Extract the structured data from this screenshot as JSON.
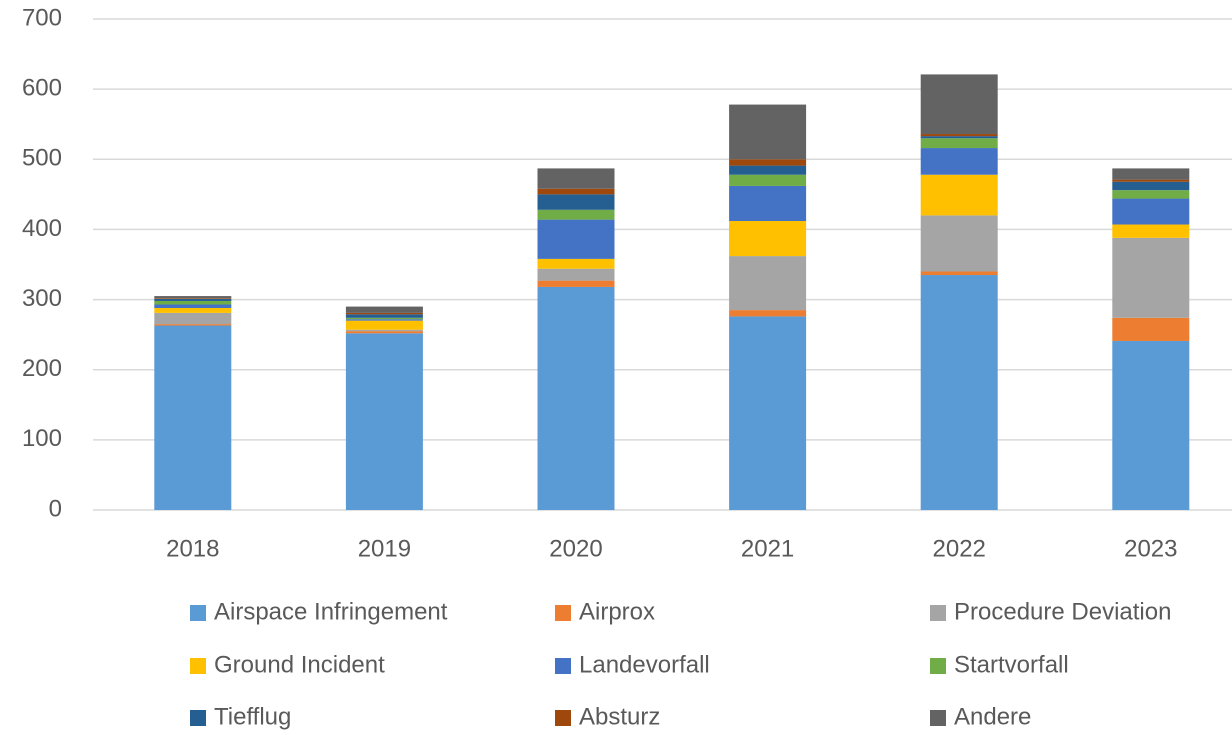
{
  "chart_data": {
    "type": "stacked_bar",
    "categories": [
      "2018",
      "2019",
      "2020",
      "2021",
      "2022",
      "2023"
    ],
    "series": [
      {
        "name": "Airspace Infringement",
        "color": "#5b9bd5",
        "values": [
          263,
          252,
          318,
          276,
          335,
          241
        ]
      },
      {
        "name": "Airprox",
        "color": "#ed7d31",
        "values": [
          2,
          3,
          9,
          9,
          5,
          33
        ]
      },
      {
        "name": "Procedure Deviation",
        "color": "#a5a5a5",
        "values": [
          16,
          2,
          17,
          77,
          80,
          114
        ]
      },
      {
        "name": "Ground Incident",
        "color": "#ffc000",
        "values": [
          7,
          13,
          14,
          50,
          58,
          19
        ]
      },
      {
        "name": "Landevorfall",
        "color": "#4472c4",
        "values": [
          5,
          2,
          56,
          50,
          38,
          37
        ]
      },
      {
        "name": "Startvorfall",
        "color": "#70ad47",
        "values": [
          5,
          2,
          14,
          16,
          14,
          12
        ]
      },
      {
        "name": "Tiefflug",
        "color": "#255e91",
        "values": [
          3,
          5,
          22,
          13,
          3,
          12
        ]
      },
      {
        "name": "Absturz",
        "color": "#9e480e",
        "values": [
          1,
          2,
          8,
          9,
          3,
          3
        ]
      },
      {
        "name": "Andere",
        "color": "#636363",
        "values": [
          3,
          9,
          29,
          78,
          85,
          16
        ]
      }
    ],
    "ylim": [
      0,
      700
    ],
    "yticks": [
      0,
      100,
      200,
      300,
      400,
      500,
      600,
      700
    ],
    "grid": true,
    "legend": "bottom"
  }
}
